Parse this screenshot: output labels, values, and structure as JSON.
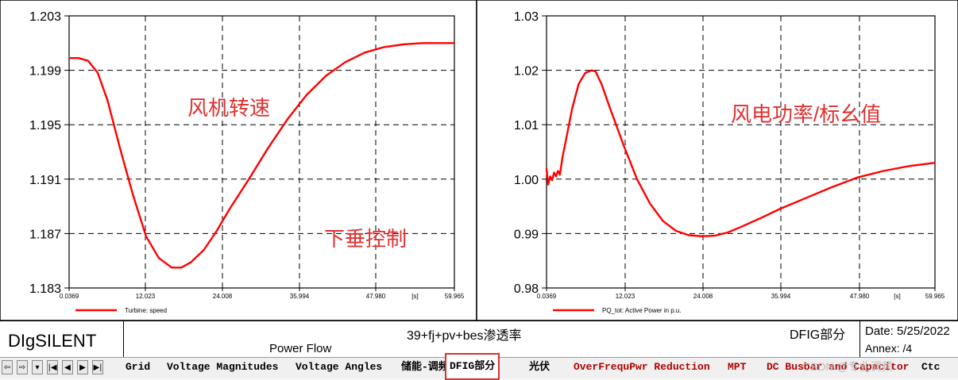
{
  "chart_data": [
    {
      "type": "line",
      "series": [
        {
          "name": "Turbine: speed",
          "color": "#ff0000",
          "x": [
            0.0369,
            1.5,
            3.0,
            4.5,
            6.0,
            8.0,
            10.0,
            12.0,
            14.0,
            16.0,
            17.5,
            19.0,
            21.0,
            23.0,
            25.0,
            28.0,
            31.0,
            34.0,
            37.0,
            40.0,
            43.0,
            46.0,
            49.0,
            52.0,
            55.0,
            59.965
          ],
          "y": [
            1.1999,
            1.1999,
            1.1997,
            1.1988,
            1.1968,
            1.1932,
            1.1898,
            1.1868,
            1.1852,
            1.1845,
            1.1845,
            1.1849,
            1.1858,
            1.1872,
            1.1888,
            1.191,
            1.1933,
            1.1954,
            1.1972,
            1.1986,
            1.1996,
            1.2003,
            1.2007,
            1.2009,
            1.201,
            1.201
          ]
        }
      ],
      "yticks": [
        "1.203",
        "1.199",
        "1.195",
        "1.191",
        "1.187",
        "1.183"
      ],
      "xticks": [
        "0.0369",
        "12.023",
        "24.008",
        "35.994",
        "47.980",
        "59.965"
      ],
      "x_unit": "[s]",
      "xlim": [
        0.0369,
        59.965
      ],
      "ylim": [
        1.183,
        1.203
      ],
      "grid": true,
      "legend": "bottom-left",
      "annotations": [
        "风机转速",
        "下垂控制"
      ]
    },
    {
      "type": "line",
      "series": [
        {
          "name": "PQ_tot: Active Power in p.u.",
          "color": "#ff0000",
          "x": [
            0.0369,
            0.3,
            0.6,
            0.9,
            1.2,
            1.5,
            1.8,
            2.1,
            2.5,
            3.0,
            4.0,
            5.0,
            6.0,
            7.0,
            7.6,
            8.5,
            10.0,
            12.0,
            14.0,
            16.0,
            18.0,
            20.0,
            22.0,
            24.0,
            26.0,
            28.0,
            30.0,
            33.0,
            36.0,
            40.0,
            44.0,
            48.0,
            52.0,
            56.0,
            59.965
          ],
          "y": [
            1.002,
            0.999,
            1.0005,
            0.9998,
            1.0012,
            1.0005,
            1.0015,
            1.0008,
            1.004,
            1.007,
            1.013,
            1.0175,
            1.0195,
            1.02,
            1.0198,
            1.0175,
            1.0125,
            1.006,
            1.0,
            0.9955,
            0.9923,
            0.9905,
            0.9897,
            0.9895,
            0.9896,
            0.9902,
            0.9912,
            0.9928,
            0.9945,
            0.9965,
            0.9985,
            1.0003,
            1.0015,
            1.0024,
            1.003
          ]
        }
      ],
      "yticks": [
        "1.03",
        "1.02",
        "1.01",
        "1.00",
        "0.99",
        "0.98"
      ],
      "xticks": [
        "0.0369",
        "12.023",
        "24.008",
        "35.994",
        "47.980",
        "59.965"
      ],
      "x_unit": "[s]",
      "xlim": [
        0.0369,
        59.965
      ],
      "ylim": [
        0.98,
        1.03
      ],
      "grid": true,
      "legend": "bottom-left",
      "annotations": [
        "风电功率/标幺值"
      ]
    }
  ],
  "titleblock": {
    "company": "DIgSILENT",
    "project": "39+fj+pv+bes渗透率",
    "subtitle": "Power Flow",
    "page_name": "DFIG部分",
    "date": "Date: 5/25/2022",
    "annex": "Annex:  /4"
  },
  "tabs": [
    {
      "label": "Grid",
      "red": false
    },
    {
      "label": "Voltage Magnitudes",
      "red": false
    },
    {
      "label": "Voltage Angles",
      "red": false
    },
    {
      "label": "储能-调频",
      "red": false
    },
    {
      "label": "DFIG部分",
      "red": false,
      "active": true
    },
    {
      "label": "光伏",
      "red": false
    },
    {
      "label": "OverFrequPwr Reduction",
      "red": true
    },
    {
      "label": "MPT",
      "red": true
    },
    {
      "label": "DC Busbar and Capacitor",
      "red": true
    },
    {
      "label": "Ctc",
      "red": false
    }
  ],
  "nav": [
    "⇦",
    "⇨",
    "▾",
    "|◀",
    "◀",
    "▶",
    "▶|"
  ],
  "watermark": "CSDN @专业调频"
}
